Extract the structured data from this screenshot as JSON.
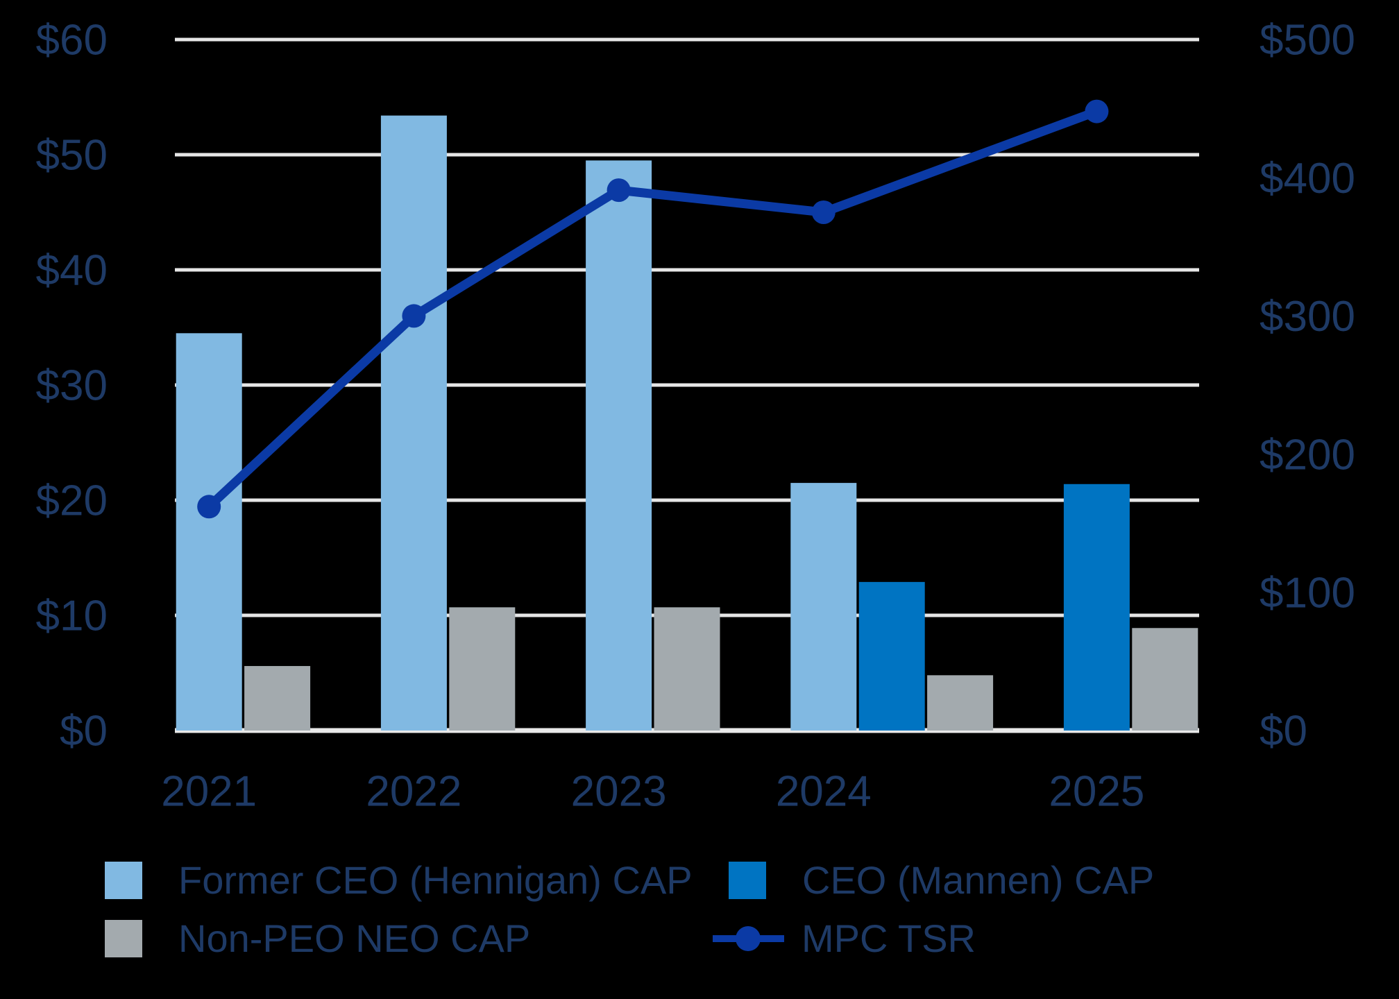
{
  "chart_data": {
    "type": "combo-bar-line",
    "title": "",
    "categories": [
      "2021",
      "2022",
      "2023",
      "2024",
      "2025"
    ],
    "series": [
      {
        "name": "Former CEO (Hennigan) CAP",
        "type": "bar",
        "axis": "left",
        "color": "#81B9E2",
        "values": [
          34.5,
          53.4,
          49.5,
          21.5,
          null
        ]
      },
      {
        "name": "CEO (Mannen) CAP",
        "type": "bar",
        "axis": "left",
        "color": "#0074C2",
        "values": [
          null,
          null,
          null,
          12.9,
          21.4
        ]
      },
      {
        "name": "Non-PEO NEO CAP",
        "type": "bar",
        "axis": "left",
        "color": "#A3AAAE",
        "values": [
          5.6,
          10.7,
          10.7,
          4.8,
          8.9
        ]
      },
      {
        "name": "MPC TSR",
        "type": "line",
        "axis": "right",
        "color": "#0B3AA5",
        "values": [
          162,
          300,
          391,
          375,
          448
        ]
      }
    ],
    "left_axis": {
      "min": 0,
      "max": 60,
      "tick_step": 10,
      "tick_values": [
        0,
        10,
        20,
        30,
        40,
        50,
        60
      ],
      "tick_labels": [
        "$0",
        "$10",
        "$20",
        "$30",
        "$40",
        "$50",
        "$60"
      ]
    },
    "right_axis": {
      "min": 0,
      "max": 500,
      "tick_step": 100,
      "tick_values": [
        0,
        100,
        200,
        300,
        400,
        500
      ],
      "tick_labels": [
        "$0",
        "$100",
        "$200",
        "$300",
        "$400",
        "$500"
      ]
    },
    "grid": true,
    "legend_position": "bottom",
    "background_color": "#000000",
    "text_color": "#1E3A66",
    "gridline_color": "#E6E6E6",
    "baseline_color": "#E8E8E8"
  }
}
